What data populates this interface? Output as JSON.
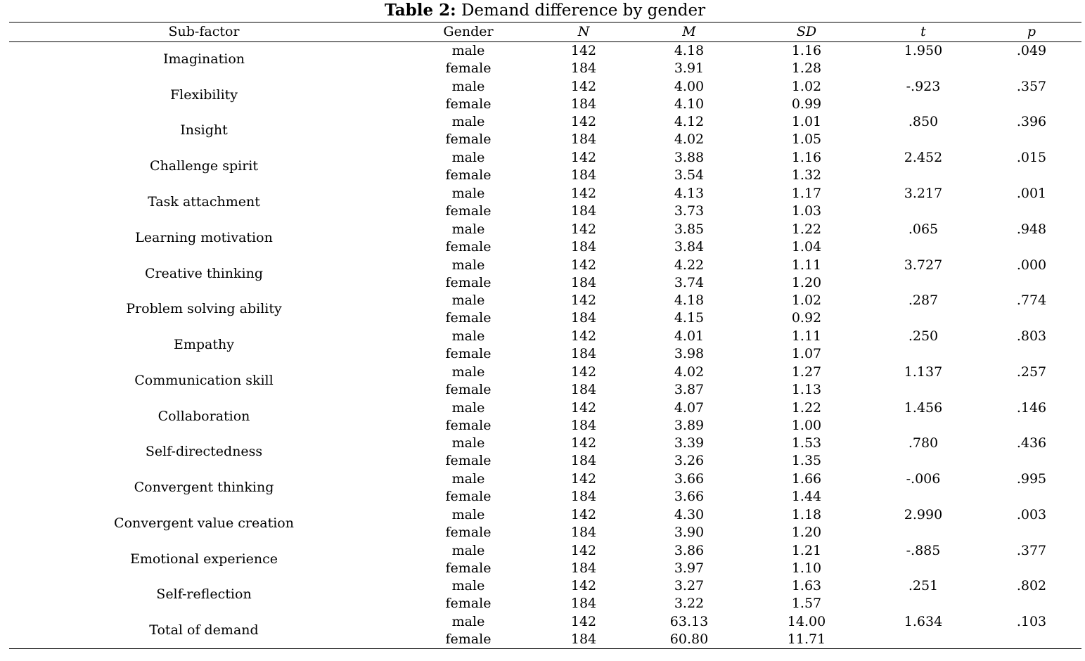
{
  "table": {
    "label": "Table 2:",
    "caption": "Demand difference by gender",
    "headers": {
      "subfactor": "Sub-factor",
      "gender": "Gender",
      "n": "N",
      "m": "M",
      "sd": "SD",
      "t": "t",
      "p": "p"
    },
    "rows": [
      {
        "name": "Imagination",
        "male": {
          "gender": "male",
          "n": "142",
          "m": "4.18",
          "sd": "1.16"
        },
        "female": {
          "gender": "female",
          "n": "184",
          "m": "3.91",
          "sd": "1.28"
        },
        "t": "1.950",
        "p": ".049"
      },
      {
        "name": "Flexibility",
        "male": {
          "gender": "male",
          "n": "142",
          "m": "4.00",
          "sd": "1.02"
        },
        "female": {
          "gender": "female",
          "n": "184",
          "m": "4.10",
          "sd": "0.99"
        },
        "t": "-.923",
        "p": ".357"
      },
      {
        "name": "Insight",
        "male": {
          "gender": "male",
          "n": "142",
          "m": "4.12",
          "sd": "1.01"
        },
        "female": {
          "gender": "female",
          "n": "184",
          "m": "4.02",
          "sd": "1.05"
        },
        "t": ".850",
        "p": ".396"
      },
      {
        "name": "Challenge spirit",
        "male": {
          "gender": "male",
          "n": "142",
          "m": "3.88",
          "sd": "1.16"
        },
        "female": {
          "gender": "female",
          "n": "184",
          "m": "3.54",
          "sd": "1.32"
        },
        "t": "2.452",
        "p": ".015"
      },
      {
        "name": "Task attachment",
        "male": {
          "gender": "male",
          "n": "142",
          "m": "4.13",
          "sd": "1.17"
        },
        "female": {
          "gender": "female",
          "n": "184",
          "m": "3.73",
          "sd": "1.03"
        },
        "t": "3.217",
        "p": ".001"
      },
      {
        "name": "Learning motivation",
        "male": {
          "gender": "male",
          "n": "142",
          "m": "3.85",
          "sd": "1.22"
        },
        "female": {
          "gender": "female",
          "n": "184",
          "m": "3.84",
          "sd": "1.04"
        },
        "t": ".065",
        "p": ".948"
      },
      {
        "name": "Creative thinking",
        "male": {
          "gender": "male",
          "n": "142",
          "m": "4.22",
          "sd": "1.11"
        },
        "female": {
          "gender": "female",
          "n": "184",
          "m": "3.74",
          "sd": "1.20"
        },
        "t": "3.727",
        "p": ".000"
      },
      {
        "name": "Problem solving ability",
        "male": {
          "gender": "male",
          "n": "142",
          "m": "4.18",
          "sd": "1.02"
        },
        "female": {
          "gender": "female",
          "n": "184",
          "m": "4.15",
          "sd": "0.92"
        },
        "t": ".287",
        "p": ".774"
      },
      {
        "name": "Empathy",
        "male": {
          "gender": "male",
          "n": "142",
          "m": "4.01",
          "sd": "1.11"
        },
        "female": {
          "gender": "female",
          "n": "184",
          "m": "3.98",
          "sd": "1.07"
        },
        "t": ".250",
        "p": ".803"
      },
      {
        "name": "Communication skill",
        "male": {
          "gender": "male",
          "n": "142",
          "m": "4.02",
          "sd": "1.27"
        },
        "female": {
          "gender": "female",
          "n": "184",
          "m": "3.87",
          "sd": "1.13"
        },
        "t": "1.137",
        "p": ".257"
      },
      {
        "name": "Collaboration",
        "male": {
          "gender": "male",
          "n": "142",
          "m": "4.07",
          "sd": "1.22"
        },
        "female": {
          "gender": "female",
          "n": "184",
          "m": "3.89",
          "sd": "1.00"
        },
        "t": "1.456",
        "p": ".146"
      },
      {
        "name": "Self-directedness",
        "male": {
          "gender": "male",
          "n": "142",
          "m": "3.39",
          "sd": "1.53"
        },
        "female": {
          "gender": "female",
          "n": "184",
          "m": "3.26",
          "sd": "1.35"
        },
        "t": ".780",
        "p": ".436"
      },
      {
        "name": "Convergent thinking",
        "male": {
          "gender": "male",
          "n": "142",
          "m": "3.66",
          "sd": "1.66"
        },
        "female": {
          "gender": "female",
          "n": "184",
          "m": "3.66",
          "sd": "1.44"
        },
        "t": "-.006",
        "p": ".995"
      },
      {
        "name": "Convergent value creation",
        "male": {
          "gender": "male",
          "n": "142",
          "m": "4.30",
          "sd": "1.18"
        },
        "female": {
          "gender": "female",
          "n": "184",
          "m": "3.90",
          "sd": "1.20"
        },
        "t": "2.990",
        "p": ".003"
      },
      {
        "name": "Emotional experience",
        "male": {
          "gender": "male",
          "n": "142",
          "m": "3.86",
          "sd": "1.21"
        },
        "female": {
          "gender": "female",
          "n": "184",
          "m": "3.97",
          "sd": "1.10"
        },
        "t": "-.885",
        "p": ".377"
      },
      {
        "name": "Self-reflection",
        "male": {
          "gender": "male",
          "n": "142",
          "m": "3.27",
          "sd": "1.63"
        },
        "female": {
          "gender": "female",
          "n": "184",
          "m": "3.22",
          "sd": "1.57"
        },
        "t": ".251",
        "p": ".802"
      },
      {
        "name": "Total of demand",
        "male": {
          "gender": "male",
          "n": "142",
          "m": "63.13",
          "sd": "14.00"
        },
        "female": {
          "gender": "female",
          "n": "184",
          "m": "60.80",
          "sd": "11.71"
        },
        "t": "1.634",
        "p": ".103"
      }
    ]
  }
}
